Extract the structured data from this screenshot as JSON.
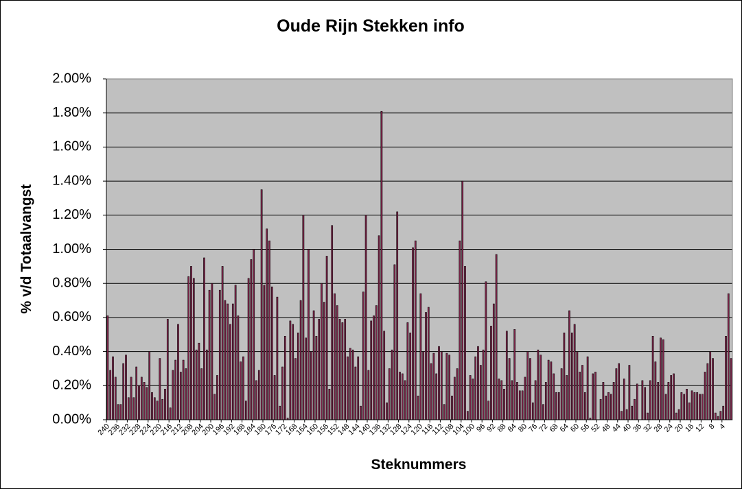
{
  "chart_data": {
    "type": "bar",
    "title": "Oude Rijn Stekken info",
    "x_label": "Steknummers",
    "y_label": "% v/d Totaalvangst",
    "color": "#7a2448",
    "grid": true,
    "ylim": [
      0,
      2
    ],
    "yticks": [
      {
        "value": 0,
        "label": "0.00%"
      },
      {
        "value": 0.2,
        "label": "0.20%"
      },
      {
        "value": 0.4,
        "label": "0.40%"
      },
      {
        "value": 0.6,
        "label": "0.60%"
      },
      {
        "value": 0.8,
        "label": "0.80%"
      },
      {
        "value": 1,
        "label": "1.00%"
      },
      {
        "value": 1.2,
        "label": "1.20%"
      },
      {
        "value": 1.4,
        "label": "1.40%"
      },
      {
        "value": 1.6,
        "label": "1.60%"
      },
      {
        "value": 1.8,
        "label": "1.80%"
      },
      {
        "value": 2,
        "label": "2.00%"
      }
    ],
    "categories": [
      "240",
      null,
      null,
      null,
      "236",
      null,
      null,
      null,
      "232",
      null,
      null,
      null,
      "228",
      null,
      null,
      null,
      "224",
      null,
      null,
      null,
      "220",
      null,
      null,
      null,
      "216",
      null,
      null,
      null,
      "212",
      null,
      null,
      null,
      "208",
      null,
      null,
      null,
      "204",
      null,
      null,
      null,
      "200",
      null,
      null,
      null,
      "196",
      null,
      null,
      null,
      "192",
      null,
      null,
      null,
      "188",
      null,
      null,
      null,
      "184",
      null,
      null,
      null,
      "180",
      null,
      null,
      null,
      "176",
      null,
      null,
      null,
      "172",
      null,
      null,
      null,
      "168",
      null,
      null,
      null,
      "164",
      null,
      null,
      null,
      "160",
      null,
      null,
      null,
      "156",
      null,
      null,
      null,
      "152",
      null,
      null,
      null,
      "148",
      null,
      null,
      null,
      "144",
      null,
      null,
      null,
      "140",
      null,
      null,
      null,
      "136",
      null,
      null,
      null,
      "132",
      null,
      null,
      null,
      "128",
      null,
      null,
      null,
      "124",
      null,
      null,
      null,
      "120",
      null,
      null,
      null,
      "116",
      null,
      null,
      null,
      "112",
      null,
      null,
      null,
      "108",
      null,
      null,
      null,
      "104",
      null,
      null,
      null,
      "100",
      null,
      null,
      null,
      "96",
      null,
      null,
      null,
      "92",
      null,
      null,
      null,
      "88",
      null,
      null,
      null,
      "84",
      null,
      null,
      null,
      "80",
      null,
      null,
      null,
      "76",
      null,
      null,
      null,
      "72",
      null,
      null,
      null,
      "68",
      null,
      null,
      null,
      "64",
      null,
      null,
      null,
      "60",
      null,
      null,
      null,
      "56",
      null,
      null,
      null,
      "52",
      null,
      null,
      null,
      "48",
      null,
      null,
      null,
      "44",
      null,
      null,
      null,
      "40",
      null,
      null,
      null,
      "36",
      null,
      null,
      null,
      "32",
      null,
      null,
      null,
      "28",
      null,
      null,
      null,
      "24",
      null,
      null,
      null,
      "20",
      null,
      null,
      null,
      "16",
      null,
      null,
      null,
      "12",
      null,
      null,
      null,
      "8",
      null,
      null,
      null,
      "4",
      null,
      null,
      null
    ],
    "values": [
      0.61,
      0.29,
      0.37,
      0.25,
      0.09,
      0.09,
      0.33,
      0.38,
      0.13,
      0.25,
      0.13,
      0.31,
      0.2,
      0.25,
      0.22,
      0.19,
      0.4,
      0.16,
      0.13,
      0.11,
      0.36,
      0.12,
      0.18,
      0.59,
      0.07,
      0.29,
      0.35,
      0.56,
      0.28,
      0.35,
      0.3,
      0.84,
      0.9,
      0.83,
      0.41,
      0.45,
      0.3,
      0.95,
      0.41,
      0.76,
      0.8,
      0.15,
      0.26,
      0.76,
      0.9,
      0.7,
      0.68,
      0.56,
      0.68,
      0.79,
      0.61,
      0.34,
      0.37,
      0.11,
      0.83,
      0.94,
      1.0,
      0.23,
      0.29,
      1.35,
      0.79,
      1.12,
      1.05,
      0.78,
      0.26,
      0.72,
      0.08,
      0.31,
      0.49,
      0.01,
      0.58,
      0.56,
      0.36,
      0.51,
      0.7,
      1.2,
      0.48,
      1.0,
      0.4,
      0.64,
      0.49,
      0.59,
      0.8,
      0.69,
      0.96,
      0.18,
      1.14,
      0.74,
      0.67,
      0.59,
      0.57,
      0.59,
      0.37,
      0.42,
      0.41,
      0.31,
      0.37,
      0.08,
      0.75,
      1.2,
      0.29,
      0.58,
      0.61,
      0.67,
      1.08,
      1.81,
      0.52,
      0.1,
      0.3,
      0.41,
      0.91,
      1.22,
      0.28,
      0.27,
      0.23,
      0.57,
      0.51,
      1.01,
      1.05,
      0.14,
      0.74,
      0.4,
      0.63,
      0.66,
      0.33,
      0.39,
      0.27,
      0.43,
      0.4,
      0.09,
      0.39,
      0.38,
      0.14,
      0.25,
      0.3,
      1.05,
      1.4,
      0.9,
      0.05,
      0.26,
      0.24,
      0.37,
      0.43,
      0.32,
      0.41,
      0.81,
      0.11,
      0.55,
      0.68,
      0.97,
      0.24,
      0.23,
      0.18,
      0.52,
      0.36,
      0.23,
      0.53,
      0.22,
      0.17,
      0.17,
      0.25,
      0.4,
      0.36,
      0.1,
      0.23,
      0.41,
      0.38,
      0.09,
      0.22,
      0.35,
      0.34,
      0.27,
      0.16,
      0.16,
      0.3,
      0.51,
      0.26,
      0.64,
      0.51,
      0.56,
      0.4,
      0.28,
      0.32,
      0.16,
      0.37,
      0.01,
      0.27,
      0.28,
      0.0,
      0.12,
      0.22,
      0.14,
      0.16,
      0.15,
      0.22,
      0.3,
      0.33,
      0.05,
      0.24,
      0.06,
      0.32,
      0.08,
      0.12,
      0.21,
      0.0,
      0.23,
      0.19,
      0.04,
      0.23,
      0.49,
      0.34,
      0.22,
      0.48,
      0.47,
      0.15,
      0.22,
      0.26,
      0.27,
      0.04,
      0.06,
      0.16,
      0.15,
      0.18,
      0.1,
      0.17,
      0.16,
      0.16,
      0.15,
      0.15,
      0.28,
      0.33,
      0.4,
      0.36,
      0.04,
      0.02,
      0.05,
      0.08,
      0.49,
      0.74,
      0.36
    ]
  }
}
